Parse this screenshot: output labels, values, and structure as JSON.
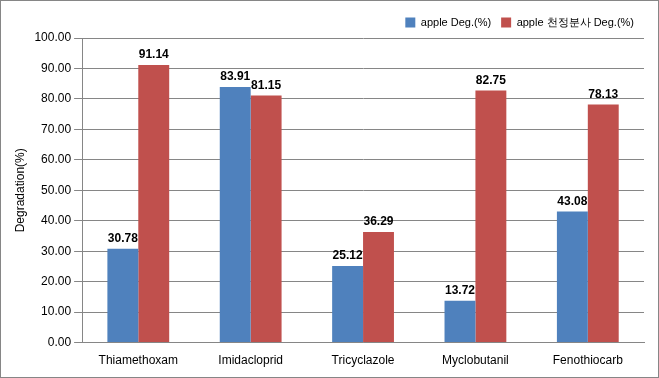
{
  "chart_data": {
    "type": "bar",
    "y_label": "Degradation(%)",
    "categories": [
      "Thiamethoxam",
      "Imidacloprid",
      "Tricyclazole",
      "Myclobutanil",
      "Fenothiocarb"
    ],
    "series": [
      {
        "name": "apple Deg.(%)",
        "color": "#4f81bd",
        "values": [
          30.78,
          83.91,
          25.12,
          13.72,
          43.08
        ]
      },
      {
        "name": "apple 천정분사 Deg.(%)",
        "color": "#c0504d",
        "values": [
          91.14,
          81.15,
          36.29,
          82.75,
          78.13
        ]
      }
    ],
    "ylim": [
      0,
      100
    ],
    "yticks": [
      {
        "value": 0,
        "label": "0.00"
      },
      {
        "value": 10,
        "label": "10.00"
      },
      {
        "value": 20,
        "label": "20.00"
      },
      {
        "value": 30,
        "label": "30.00"
      },
      {
        "value": 40,
        "label": "40.00"
      },
      {
        "value": 50,
        "label": "50.00"
      },
      {
        "value": 60,
        "label": "60.00"
      },
      {
        "value": 70,
        "label": "70.00"
      },
      {
        "value": 80,
        "label": "80.00"
      },
      {
        "value": 90,
        "label": "90.00"
      },
      {
        "value": 100,
        "label": "100.00"
      }
    ],
    "grid": true,
    "legend": "top right",
    "data_labels": true
  }
}
